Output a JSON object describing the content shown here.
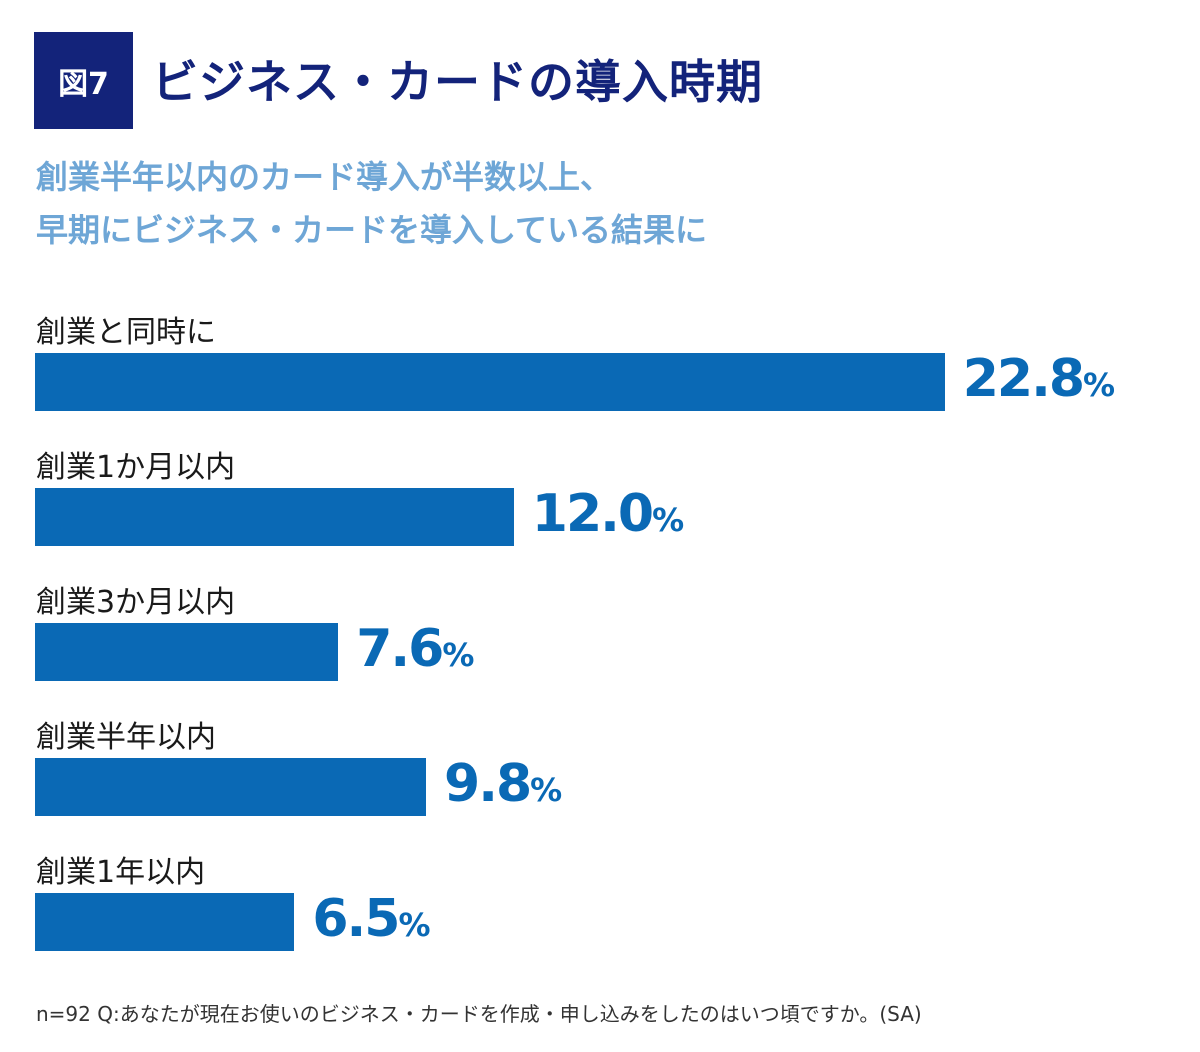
{
  "chart_data": {
    "type": "bar",
    "orientation": "horizontal",
    "badge": "図7",
    "title": "ビジネス・カードの導入時期",
    "subtitle": [
      "創業半年以内のカード導入が半数以上、",
      "早期にビジネス・カードを導入している結果に"
    ],
    "categories": [
      "創業と同時に",
      "創業1か月以内",
      "創業3か月以内",
      "創業半年以内",
      "創業1年以内"
    ],
    "values": [
      22.8,
      12.0,
      7.6,
      9.8,
      6.5
    ],
    "value_labels": [
      "22.8",
      "12.0",
      "7.6",
      "9.8",
      "6.5"
    ],
    "unit": "%",
    "grid": false,
    "note": "n=92 Q:あなたが現在お使いのビジネス・カードを作成・申し込みをしたのはいつ頃ですか。(SA)",
    "colors": {
      "bar": "#0a69b5",
      "title": "#13237a",
      "subtitle": "#6ea6d6"
    }
  }
}
